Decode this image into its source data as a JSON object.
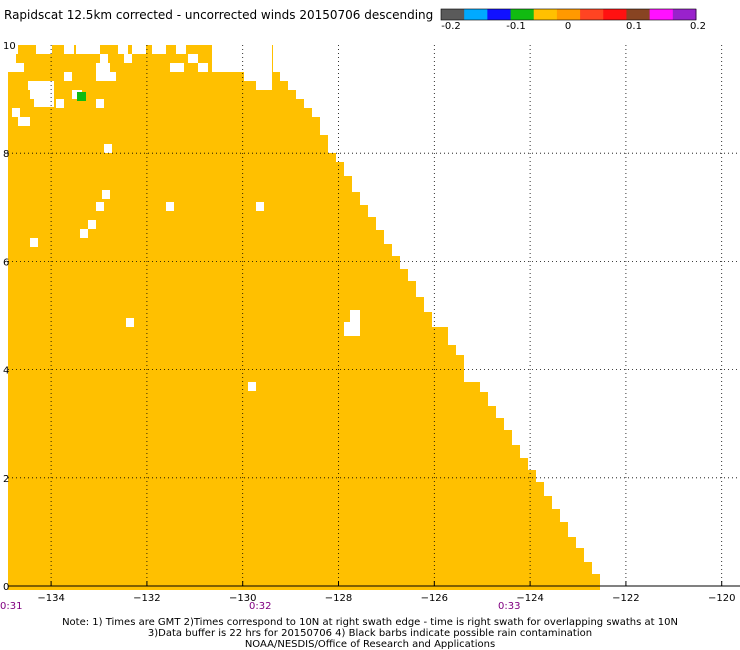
{
  "title": "Rapidscat 12.5km corrected - uncorrected winds 20150706 descending",
  "colorbar": {
    "colors": [
      "#5a5a5a",
      "#00aaff",
      "#1111ff",
      "#11bb11",
      "#ffc000",
      "#ff9900",
      "#ff4422",
      "#ff1111",
      "#884422",
      "#ff11ff",
      "#9922cc"
    ],
    "labels": [
      "-0.2",
      "-0.1",
      "0",
      "0.1",
      "0.2"
    ]
  },
  "map": {
    "fill_color": "#ffc000",
    "highlight_color": "#11bb11",
    "lon_range": [
      -134.9,
      -120
    ],
    "lat_range": [
      0,
      10
    ],
    "lon_ticks": [
      "-134",
      "-132",
      "-130",
      "-128",
      "-126",
      "-124",
      "-122",
      "-120"
    ],
    "lat_ticks": [
      "0",
      "2",
      "4",
      "6",
      "8",
      "10"
    ],
    "time_labels": [
      "0:31",
      "0:32",
      "0:33"
    ]
  },
  "notes": {
    "line1": "Note: 1) Times are GMT 2)Times correspond to 10N at right swath edge - time is right swath for overlapping swaths at 10N",
    "line2": "3)Data buffer is 22 hrs for 20150706 4) Black barbs indicate possible rain contamination",
    "line3": "NOAA/NESDIS/Office of Research and Applications"
  }
}
